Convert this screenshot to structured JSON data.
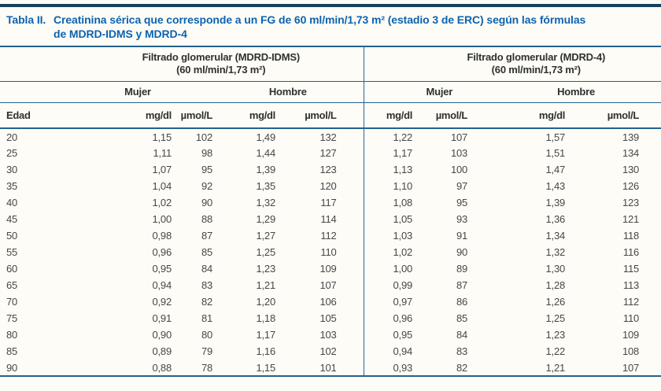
{
  "title": {
    "label": "Tabla II.",
    "line1": "Creatinina sérica que corresponde a un FG de 60 ml/min/1,73 m² (estadio 3 de ERC) según las fórmulas",
    "line2": "de MDRD-IDMS y MDRD-4"
  },
  "colors": {
    "top_bar": "#16415e",
    "rule_blue": "#25618c",
    "title_blue": "#0d63b2",
    "background": "#fdfcf6"
  },
  "table": {
    "groups": [
      {
        "line1": "Filtrado glomerular (MDRD-IDMS)",
        "line2": "(60 ml/min/1,73 m²)"
      },
      {
        "line1": "Filtrado glomerular (MDRD-4)",
        "line2": "(60 ml/min/1,73 m²)"
      }
    ],
    "sex_headers": [
      "Mujer",
      "Hombre",
      "Mujer",
      "Hombre"
    ],
    "col_headers": [
      "Edad",
      "mg/dl",
      "µmol/L",
      "mg/dl",
      "µmol/L",
      "mg/dl",
      "µmol/L",
      "mg/dl",
      "µmol/L"
    ],
    "rows": [
      [
        "20",
        "1,15",
        "102",
        "1,49",
        "132",
        "1,22",
        "107",
        "1,57",
        "139"
      ],
      [
        "25",
        "1,11",
        "98",
        "1,44",
        "127",
        "1,17",
        "103",
        "1,51",
        "134"
      ],
      [
        "30",
        "1,07",
        "95",
        "1,39",
        "123",
        "1,13",
        "100",
        "1,47",
        "130"
      ],
      [
        "35",
        "1,04",
        "92",
        "1,35",
        "120",
        "1,10",
        "97",
        "1,43",
        "126"
      ],
      [
        "40",
        "1,02",
        "90",
        "1,32",
        "117",
        "1,08",
        "95",
        "1,39",
        "123"
      ],
      [
        "45",
        "1,00",
        "88",
        "1,29",
        "114",
        "1,05",
        "93",
        "1,36",
        "121"
      ],
      [
        "50",
        "0,98",
        "87",
        "1,27",
        "112",
        "1,03",
        "91",
        "1,34",
        "118"
      ],
      [
        "55",
        "0,96",
        "85",
        "1,25",
        "110",
        "1,02",
        "90",
        "1,32",
        "116"
      ],
      [
        "60",
        "0,95",
        "84",
        "1,23",
        "109",
        "1,00",
        "89",
        "1,30",
        "115"
      ],
      [
        "65",
        "0,94",
        "83",
        "1,21",
        "107",
        "0,99",
        "87",
        "1,28",
        "113"
      ],
      [
        "70",
        "0,92",
        "82",
        "1,20",
        "106",
        "0,97",
        "86",
        "1,26",
        "112"
      ],
      [
        "75",
        "0,91",
        "81",
        "1,18",
        "105",
        "0,96",
        "85",
        "1,25",
        "110"
      ],
      [
        "80",
        "0,90",
        "80",
        "1,17",
        "103",
        "0,95",
        "84",
        "1,23",
        "109"
      ],
      [
        "85",
        "0,89",
        "79",
        "1,16",
        "102",
        "0,94",
        "83",
        "1,22",
        "108"
      ],
      [
        "90",
        "0,88",
        "78",
        "1,15",
        "101",
        "0,93",
        "82",
        "1,21",
        "107"
      ]
    ]
  }
}
